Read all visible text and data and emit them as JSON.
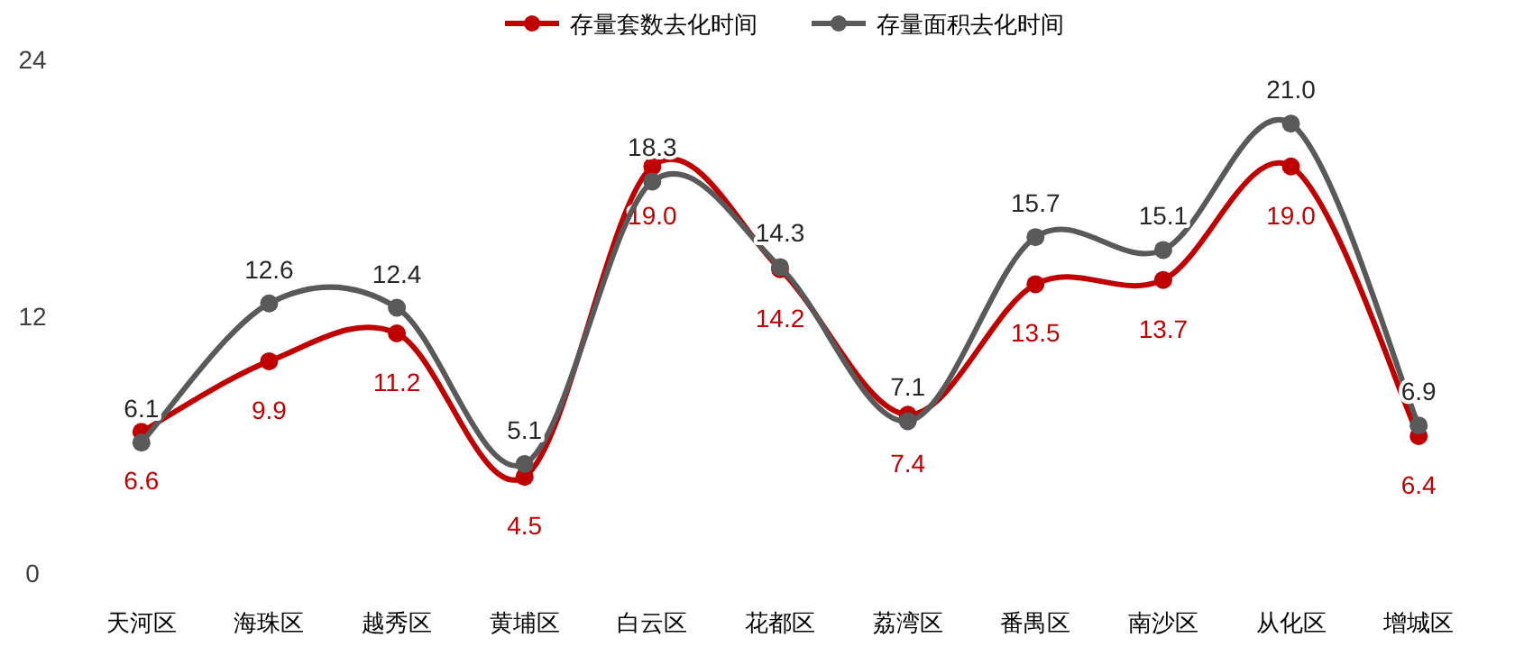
{
  "chart_data": {
    "type": "line",
    "categories": [
      "天河区",
      "海珠区",
      "越秀区",
      "黄埔区",
      "白云区",
      "花都区",
      "荔湾区",
      "番禺区",
      "南沙区",
      "从化区",
      "增城区"
    ],
    "series": [
      {
        "name": "存量套数去化时间",
        "color": "#c00000",
        "values": [
          6.6,
          9.9,
          11.2,
          4.5,
          19.0,
          14.2,
          7.4,
          13.5,
          13.7,
          19.0,
          6.4
        ],
        "value_labels": [
          "6.6",
          "9.9",
          "11.2",
          "4.5",
          "19.0",
          "14.2",
          "7.4",
          "13.5",
          "13.7",
          "19.0",
          "6.4"
        ]
      },
      {
        "name": "存量面积去化时间",
        "color": "#595959",
        "values": [
          6.1,
          12.6,
          12.4,
          5.1,
          18.3,
          14.3,
          7.1,
          15.7,
          15.1,
          21.0,
          6.9
        ],
        "value_labels": [
          "6.1",
          "12.6",
          "12.4",
          "5.1",
          "18.3",
          "14.3",
          "7.1",
          "15.7",
          "15.1",
          "21.0",
          "6.9"
        ]
      }
    ],
    "ylim": [
      0,
      24
    ],
    "yticks": [
      0,
      12,
      24
    ],
    "grid": false,
    "legend": "top",
    "marker": "circle",
    "line_style": "solid"
  }
}
